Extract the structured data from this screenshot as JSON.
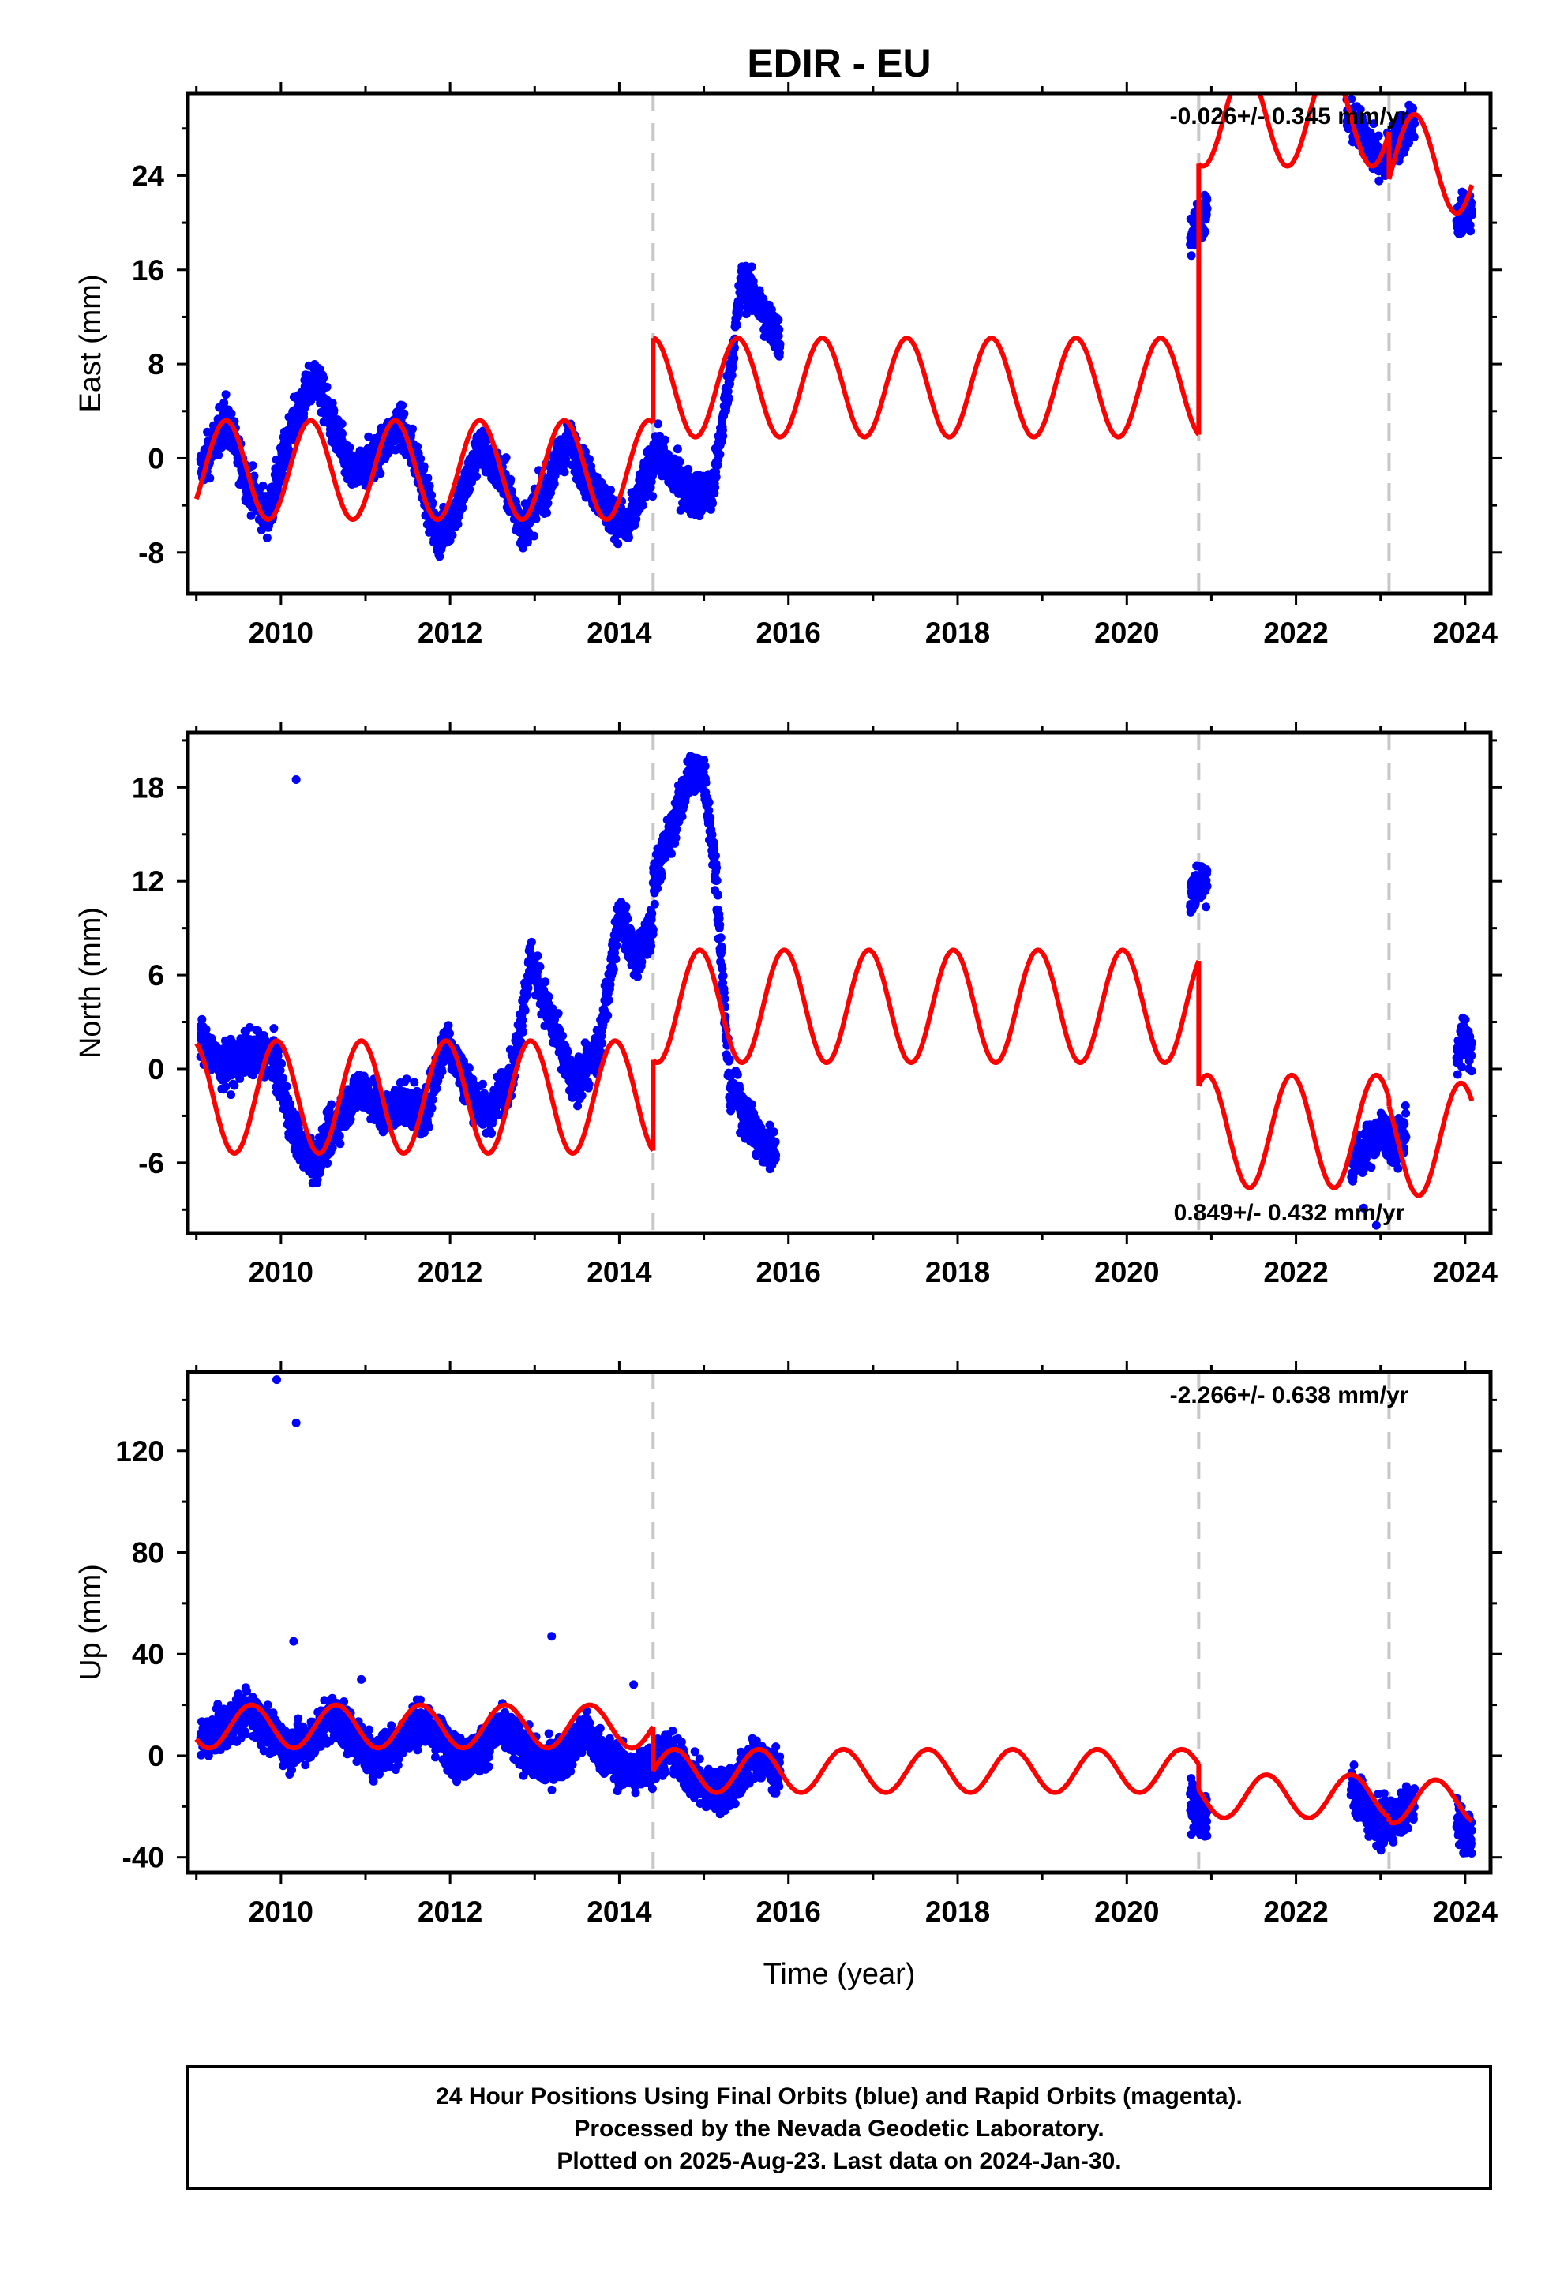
{
  "chart_data": {
    "type": "scatter",
    "title": "EDIR - EU",
    "xlabel": "Time (year)",
    "xlim": [
      2008.9,
      2024.3
    ],
    "xticks": [
      2010,
      2012,
      2014,
      2016,
      2018,
      2020,
      2022,
      2024
    ],
    "offset_lines": [
      2014.4,
      2020.85,
      2023.1
    ],
    "colors": {
      "data": "#0000ff",
      "model": "#ff0000",
      "offset": "#c8c8c8",
      "axis": "#000000"
    },
    "legend": "none",
    "panels": [
      {
        "id": "east",
        "ylabel": "East (mm)",
        "ylim": [
          -11.5,
          31
        ],
        "yticks": [
          -8,
          0,
          8,
          16,
          24
        ],
        "rate": "-0.026+/- 0.345 mm/yr",
        "rate_position": "top-right",
        "series": [
          {
            "kind": "data",
            "segments": [
              {
                "t0": 2009.05,
                "t1": 2014.4,
                "x": [
                  2009.05,
                  2009.35,
                  2009.6,
                  2009.85,
                  2010.1,
                  2010.4,
                  2010.65,
                  2010.85,
                  2011.1,
                  2011.4,
                  2011.65,
                  2011.85,
                  2012.1,
                  2012.35,
                  2012.65,
                  2012.85,
                  2013.1,
                  2013.4,
                  2013.65,
                  2013.85,
                  2014.1,
                  2014.35
                ],
                "y": [
                  -1,
                  3.5,
                  -2,
                  -5,
                  2,
                  7,
                  2,
                  -1.5,
                  0,
                  3,
                  -1,
                  -7,
                  -4,
                  1,
                  -2,
                  -6,
                  -3,
                  1.5,
                  -2,
                  -4,
                  -6,
                  -1
                ]
              },
              {
                "t0": 2014.4,
                "t1": 2015.9,
                "x": [
                  2014.4,
                  2014.6,
                  2014.85,
                  2015.1,
                  2015.3,
                  2015.45,
                  2015.65,
                  2015.9
                ],
                "y": [
                  1,
                  -1,
                  -3,
                  -3,
                  7,
                  15,
                  13,
                  10
                ]
              },
              {
                "t0": 2020.75,
                "t1": 2020.95,
                "x": [
                  2020.75,
                  2020.85,
                  2020.95
                ],
                "y": [
                  19,
                  20,
                  21
                ]
              },
              {
                "t0": 2022.6,
                "t1": 2023.4,
                "x": [
                  2022.6,
                  2022.85,
                  2023.0,
                  2023.2,
                  2023.4
                ],
                "y": [
                  29,
                  27,
                  25,
                  27,
                  29
                ]
              },
              {
                "t0": 2023.9,
                "t1": 2024.08,
                "x": [
                  2023.9,
                  2024.0,
                  2024.08
                ],
                "y": [
                  20,
                  21,
                  21
                ]
              }
            ]
          },
          {
            "kind": "model",
            "segments": [
              {
                "t0": 2009.0,
                "t1": 2014.4,
                "trend": [
                  2009,
                  -1
                ],
                "amp": 4.2,
                "peak": 2009.35
              },
              {
                "t0": 2014.4,
                "t1": 2020.85,
                "trend": [
                  2014.4,
                  6
                ],
                "amp": 4.2,
                "peak": 2014.4
              },
              {
                "t0": 2020.85,
                "t1": 2023.1,
                "trend": [
                  2020.85,
                  29
                ],
                "amp": 4.2,
                "peak": 2021.4
              },
              {
                "t0": 2023.1,
                "t1": 2024.08,
                "trend": [
                  2023.1,
                  25
                ],
                "amp": 4.2,
                "peak": 2023.4
              }
            ]
          }
        ]
      },
      {
        "id": "north",
        "ylabel": "North (mm)",
        "ylim": [
          -10.5,
          21.5
        ],
        "yticks": [
          -6,
          0,
          6,
          12,
          18
        ],
        "rate": "0.849+/- 0.432 mm/yr",
        "rate_position": "bottom-right",
        "series": [
          {
            "kind": "data",
            "segments": [
              {
                "t0": 2009.05,
                "t1": 2014.4,
                "x": [
                  2009.05,
                  2009.3,
                  2009.6,
                  2009.9,
                  2010.15,
                  2010.4,
                  2010.7,
                  2010.95,
                  2011.2,
                  2011.45,
                  2011.7,
                  2011.95,
                  2012.2,
                  2012.45,
                  2012.75,
                  2012.95,
                  2013.2,
                  2013.45,
                  2013.75,
                  2014.0,
                  2014.2,
                  2014.4
                ],
                "y": [
                  2,
                  0,
                  1,
                  1,
                  -4,
                  -6,
                  -3,
                  -1,
                  -3,
                  -2,
                  -3,
                  2,
                  -1,
                  -3,
                  0,
                  7,
                  3,
                  -1,
                  1,
                  10,
                  7,
                  9
                ]
              },
              {
                "t0": 2014.4,
                "t1": 2015.85,
                "x": [
                  2014.4,
                  2014.6,
                  2014.85,
                  2015.0,
                  2015.15,
                  2015.3,
                  2015.5,
                  2015.7,
                  2015.85
                ],
                "y": [
                  12,
                  15,
                  19,
                  19,
                  12,
                  -1,
                  -3,
                  -5,
                  -5
                ]
              },
              {
                "t0": 2020.75,
                "t1": 2020.95,
                "x": [
                  2020.75,
                  2020.85,
                  2020.95
                ],
                "y": [
                  11,
                  12,
                  12
                ]
              },
              {
                "t0": 2022.65,
                "t1": 2023.3,
                "x": [
                  2022.65,
                  2022.85,
                  2023.0,
                  2023.15,
                  2023.3
                ],
                "y": [
                  -6,
                  -5,
                  -4,
                  -5,
                  -4
                ]
              },
              {
                "t0": 2023.9,
                "t1": 2024.08,
                "x": [
                  2023.9,
                  2024.0,
                  2024.08
                ],
                "y": [
                  1,
                  2,
                  1
                ]
              }
            ]
          },
          {
            "kind": "model",
            "segments": [
              {
                "t0": 2009.0,
                "t1": 2014.4,
                "trend": [
                  2009,
                  -1.8
                ],
                "amp": 3.6,
                "peak": 2009.95
              },
              {
                "t0": 2014.4,
                "t1": 2020.85,
                "trend": [
                  2014.4,
                  4
                ],
                "amp": 3.6,
                "peak": 2014.95
              },
              {
                "t0": 2020.85,
                "t1": 2023.1,
                "trend": [
                  2020.85,
                  -4
                ],
                "amp": 3.6,
                "peak": 2021.95
              },
              {
                "t0": 2023.1,
                "t1": 2024.08,
                "trend": [
                  2023.1,
                  -4.5
                ],
                "amp": 3.6,
                "peak": 2023.95
              }
            ]
          }
        ]
      },
      {
        "id": "up",
        "ylabel": "Up (mm)",
        "ylim": [
          -46,
          151
        ],
        "yticks": [
          -40,
          0,
          40,
          80,
          120
        ],
        "rate": "-2.266+/- 0.638 mm/yr",
        "rate_position": "top-right",
        "series": [
          {
            "kind": "data",
            "segments": [
              {
                "t0": 2009.05,
                "t1": 2014.4,
                "x": [
                  2009.05,
                  2009.3,
                  2009.6,
                  2009.85,
                  2010.1,
                  2010.35,
                  2010.6,
                  2010.85,
                  2011.1,
                  2011.35,
                  2011.6,
                  2011.85,
                  2012.1,
                  2012.35,
                  2012.6,
                  2012.85,
                  2013.1,
                  2013.35,
                  2013.6,
                  2013.85,
                  2014.1,
                  2014.35
                ],
                "y": [
                  6,
                  10,
                  18,
                  10,
                  3,
                  6,
                  16,
                  8,
                  0,
                  4,
                  13,
                  8,
                  -2,
                  2,
                  11,
                  3,
                  -4,
                  0,
                  9,
                  0,
                  -7,
                  -4
                ]
              },
              {
                "t0": 2014.4,
                "t1": 2015.9,
                "x": [
                  2014.4,
                  2014.6,
                  2014.85,
                  2015.1,
                  2015.35,
                  2015.6,
                  2015.9
                ],
                "y": [
                  -3,
                  2,
                  -8,
                  -15,
                  -12,
                  0,
                  -8
                ]
              },
              {
                "t0": 2020.75,
                "t1": 2020.95,
                "x": [
                  2020.75,
                  2020.85,
                  2020.95
                ],
                "y": [
                  -18,
                  -22,
                  -26
                ]
              },
              {
                "t0": 2022.65,
                "t1": 2023.4,
                "x": [
                  2022.65,
                  2022.85,
                  2023.0,
                  2023.2,
                  2023.4
                ],
                "y": [
                  -12,
                  -22,
                  -28,
                  -24,
                  -18
                ]
              },
              {
                "t0": 2023.9,
                "t1": 2024.08,
                "x": [
                  2023.9,
                  2024.0,
                  2024.08
                ],
                "y": [
                  -24,
                  -30,
                  -32
                ]
              }
            ]
          },
          {
            "kind": "model",
            "segments": [
              {
                "t0": 2009.0,
                "t1": 2014.4,
                "trend": [
                  2009,
                  11.5
                ],
                "amp": 8.5,
                "peak": 2009.65
              },
              {
                "t0": 2014.4,
                "t1": 2020.85,
                "trend": [
                  2014.4,
                  -6
                ],
                "amp": 8.5,
                "peak": 2014.65
              },
              {
                "t0": 2020.85,
                "t1": 2023.1,
                "trend": [
                  2020.85,
                  -16
                ],
                "amp": 8.5,
                "peak": 2021.65
              },
              {
                "t0": 2023.1,
                "t1": 2024.08,
                "trend": [
                  2023.1,
                  -18
                ],
                "amp": 8.5,
                "peak": 2023.65
              }
            ]
          }
        ]
      }
    ],
    "outliers": [
      {
        "panel": "north",
        "x": 2010.18,
        "y": 18.5
      },
      {
        "panel": "north",
        "x": 2022.8,
        "y": -8.9
      },
      {
        "panel": "north",
        "x": 2022.95,
        "y": -10
      },
      {
        "panel": "up",
        "x": 2009.95,
        "y": 148
      },
      {
        "panel": "up",
        "x": 2010.18,
        "y": 131
      },
      {
        "panel": "up",
        "x": 2010.15,
        "y": 45
      },
      {
        "panel": "up",
        "x": 2013.2,
        "y": 47
      },
      {
        "panel": "up",
        "x": 2014.17,
        "y": 28
      },
      {
        "panel": "up",
        "x": 2010.95,
        "y": 30
      }
    ]
  },
  "footer": {
    "line1": "24 Hour Positions Using Final Orbits (blue) and Rapid Orbits (magenta).",
    "line2": "Processed by the Nevada Geodetic Laboratory.",
    "line3": "Plotted on 2025-Aug-23. Last data on 2024-Jan-30."
  }
}
